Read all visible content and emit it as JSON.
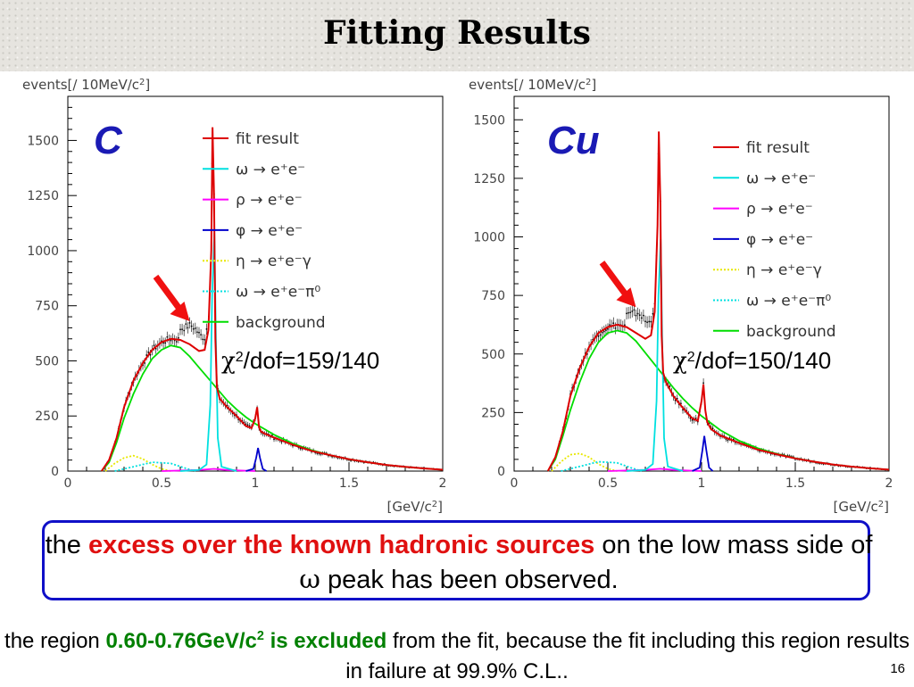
{
  "slide": {
    "title": "Fitting Results",
    "page_number": "16",
    "callout": {
      "pre": "the ",
      "highlight": "excess over the known hadronic sources",
      "mid": " on the low mass side of ",
      "symbol": "ω",
      "post": " peak has been observed."
    },
    "note": {
      "pre": "the region ",
      "highlight_main": "0.60-0.76GeV/c",
      "highlight_sup": "2",
      "highlight_end": " is excluded",
      "post": " from the fit, because the fit including this region results in failure at 99.9% C.L.."
    }
  },
  "chart_data": [
    {
      "type": "line",
      "target": "C",
      "ylabel_pre": "events[/ 10MeV/c",
      "ylabel_sup": "2",
      "ylabel_post": "]",
      "xlabel_pre": "[GeV/c",
      "xlabel_sup": "2",
      "xlabel_post": "]",
      "xlim": [
        0,
        2
      ],
      "ylim": [
        0,
        1700
      ],
      "xticks": [
        "0",
        "0.5",
        "1",
        "1.5",
        "2"
      ],
      "yticks": [
        "0",
        "250",
        "500",
        "750",
        "1000",
        "1250",
        "1500"
      ],
      "chi2_pre": "χ",
      "chi2_sup": "2",
      "chi2_post": "/dof=159/140",
      "arrow_points_to": [
        0.65,
        680
      ],
      "legend": [
        {
          "label": "fit result",
          "color": "#dd0000",
          "style": "solid"
        },
        {
          "label": "ω → e⁺e⁻",
          "color": "#00e0e0",
          "style": "solid"
        },
        {
          "label": "ρ → e⁺e⁻",
          "color": "#ff00ff",
          "style": "solid"
        },
        {
          "label": "φ → e⁺e⁻",
          "color": "#0000cc",
          "style": "solid"
        },
        {
          "label": "η → e⁺e⁻γ",
          "color": "#e8e800",
          "style": "dotted"
        },
        {
          "label": "ω → e⁺e⁻π⁰",
          "color": "#00e0e0",
          "style": "dotted"
        },
        {
          "label": "background",
          "color": "#00dd00",
          "style": "solid"
        }
      ],
      "series": [
        {
          "name": "fit result",
          "x": [
            0.18,
            0.22,
            0.26,
            0.3,
            0.35,
            0.4,
            0.45,
            0.5,
            0.55,
            0.6,
            0.65,
            0.7,
            0.73,
            0.75,
            0.765,
            0.772,
            0.78,
            0.787,
            0.795,
            0.81,
            0.85,
            0.9,
            0.95,
            0.98,
            1.0,
            1.01,
            1.02,
            1.03,
            1.05,
            1.1,
            1.2,
            1.3,
            1.4,
            1.5,
            1.6,
            1.7,
            1.8,
            1.9,
            2.0
          ],
          "y": [
            0,
            50,
            150,
            290,
            410,
            490,
            550,
            585,
            600,
            595,
            575,
            545,
            550,
            640,
            1000,
            1560,
            1250,
            600,
            380,
            330,
            290,
            250,
            205,
            195,
            240,
            290,
            200,
            180,
            170,
            152,
            120,
            92,
            72,
            54,
            40,
            28,
            19,
            12,
            6
          ]
        },
        {
          "name": "ω → e⁺e⁻",
          "x": [
            0.6,
            0.7,
            0.74,
            0.76,
            0.77,
            0.782,
            0.79,
            0.8,
            0.82,
            0.9
          ],
          "y": [
            0,
            5,
            30,
            300,
            800,
            1080,
            600,
            150,
            20,
            0
          ]
        },
        {
          "name": "ρ → e⁺e⁻",
          "x": [
            0.5,
            0.7,
            0.78,
            0.85,
            1.0
          ],
          "y": [
            0,
            5,
            10,
            5,
            0
          ]
        },
        {
          "name": "φ → e⁺e⁻",
          "x": [
            0.95,
            0.99,
            1.005,
            1.015,
            1.025,
            1.04,
            1.06
          ],
          "y": [
            0,
            10,
            60,
            105,
            60,
            10,
            0
          ]
        },
        {
          "name": "η → e⁺e⁻γ",
          "x": [
            0.2,
            0.25,
            0.3,
            0.35,
            0.4,
            0.45,
            0.5,
            0.55
          ],
          "y": [
            0,
            35,
            60,
            70,
            55,
            30,
            10,
            0
          ]
        },
        {
          "name": "ω → e⁺e⁻π⁰",
          "x": [
            0.25,
            0.35,
            0.45,
            0.55,
            0.62,
            0.68
          ],
          "y": [
            0,
            20,
            40,
            35,
            15,
            0
          ]
        },
        {
          "name": "background",
          "x": [
            0.18,
            0.22,
            0.26,
            0.3,
            0.35,
            0.4,
            0.45,
            0.5,
            0.55,
            0.6,
            0.65,
            0.7,
            0.75,
            0.8,
            0.85,
            0.9,
            0.95,
            1.0,
            1.1,
            1.2,
            1.3,
            1.4,
            1.5,
            1.6,
            1.7,
            1.8,
            1.9,
            2.0
          ],
          "y": [
            0,
            40,
            130,
            240,
            350,
            440,
            510,
            550,
            570,
            560,
            520,
            470,
            420,
            370,
            320,
            280,
            245,
            215,
            165,
            125,
            95,
            72,
            54,
            40,
            28,
            19,
            12,
            6
          ]
        }
      ]
    },
    {
      "type": "line",
      "target": "Cu",
      "ylabel_pre": "events[/ 10MeV/c",
      "ylabel_sup": "2",
      "ylabel_post": "]",
      "xlabel_pre": "[GeV/c",
      "xlabel_sup": "2",
      "xlabel_post": "]",
      "xlim": [
        0,
        2
      ],
      "ylim": [
        0,
        1600
      ],
      "xticks": [
        "0",
        "0.5",
        "1",
        "1.5",
        "2"
      ],
      "yticks": [
        "0",
        "250",
        "500",
        "750",
        "1000",
        "1250",
        "1500"
      ],
      "chi2_pre": "χ",
      "chi2_sup": "2",
      "chi2_post": "/dof=150/140",
      "arrow_points_to": [
        0.65,
        700
      ],
      "legend": [
        {
          "label": "fit result",
          "color": "#dd0000",
          "style": "solid"
        },
        {
          "label": "ω → e⁺e⁻",
          "color": "#00e0e0",
          "style": "solid"
        },
        {
          "label": "ρ → e⁺e⁻",
          "color": "#ff00ff",
          "style": "solid"
        },
        {
          "label": "φ → e⁺e⁻",
          "color": "#0000cc",
          "style": "solid"
        },
        {
          "label": "η → e⁺e⁻γ",
          "color": "#e8e800",
          "style": "dotted"
        },
        {
          "label": "ω → e⁺e⁻π⁰",
          "color": "#00e0e0",
          "style": "dotted"
        },
        {
          "label": "background",
          "color": "#00dd00",
          "style": "solid"
        }
      ],
      "series": [
        {
          "name": "fit result",
          "x": [
            0.18,
            0.22,
            0.26,
            0.3,
            0.35,
            0.4,
            0.45,
            0.5,
            0.55,
            0.6,
            0.65,
            0.7,
            0.73,
            0.75,
            0.765,
            0.772,
            0.78,
            0.787,
            0.795,
            0.81,
            0.85,
            0.9,
            0.95,
            0.98,
            1.0,
            1.01,
            1.02,
            1.03,
            1.05,
            1.1,
            1.2,
            1.3,
            1.4,
            1.5,
            1.6,
            1.7,
            1.8,
            1.9,
            2.0
          ],
          "y": [
            0,
            60,
            170,
            320,
            440,
            530,
            590,
            615,
            625,
            615,
            590,
            565,
            580,
            680,
            1050,
            1450,
            1150,
            580,
            420,
            380,
            320,
            270,
            225,
            215,
            300,
            370,
            260,
            210,
            180,
            152,
            120,
            92,
            72,
            54,
            40,
            28,
            19,
            12,
            6
          ]
        },
        {
          "name": "ω → e⁺e⁻",
          "x": [
            0.6,
            0.7,
            0.74,
            0.76,
            0.77,
            0.782,
            0.79,
            0.8,
            0.82,
            0.9
          ],
          "y": [
            0,
            5,
            30,
            300,
            750,
            990,
            560,
            140,
            20,
            0
          ]
        },
        {
          "name": "ρ → e⁺e⁻",
          "x": [
            0.5,
            0.7,
            0.78,
            0.85,
            1.0
          ],
          "y": [
            0,
            5,
            10,
            5,
            0
          ]
        },
        {
          "name": "φ → e⁺e⁻",
          "x": [
            0.95,
            0.99,
            1.005,
            1.015,
            1.025,
            1.04,
            1.06
          ],
          "y": [
            0,
            15,
            90,
            150,
            90,
            15,
            0
          ]
        },
        {
          "name": "η → e⁺e⁻γ",
          "x": [
            0.2,
            0.25,
            0.3,
            0.35,
            0.4,
            0.45,
            0.5,
            0.55
          ],
          "y": [
            0,
            40,
            70,
            75,
            60,
            30,
            10,
            0
          ]
        },
        {
          "name": "ω → e⁺e⁻π⁰",
          "x": [
            0.25,
            0.35,
            0.45,
            0.55,
            0.62,
            0.68
          ],
          "y": [
            0,
            20,
            40,
            35,
            15,
            0
          ]
        },
        {
          "name": "background",
          "x": [
            0.18,
            0.22,
            0.26,
            0.3,
            0.35,
            0.4,
            0.45,
            0.5,
            0.55,
            0.6,
            0.65,
            0.7,
            0.75,
            0.8,
            0.85,
            0.9,
            0.95,
            1.0,
            1.1,
            1.2,
            1.3,
            1.4,
            1.5,
            1.6,
            1.7,
            1.8,
            1.9,
            2.0
          ],
          "y": [
            0,
            50,
            150,
            260,
            380,
            480,
            550,
            590,
            600,
            590,
            555,
            505,
            455,
            405,
            355,
            310,
            270,
            235,
            175,
            130,
            98,
            74,
            55,
            40,
            28,
            19,
            12,
            6
          ]
        }
      ]
    }
  ]
}
